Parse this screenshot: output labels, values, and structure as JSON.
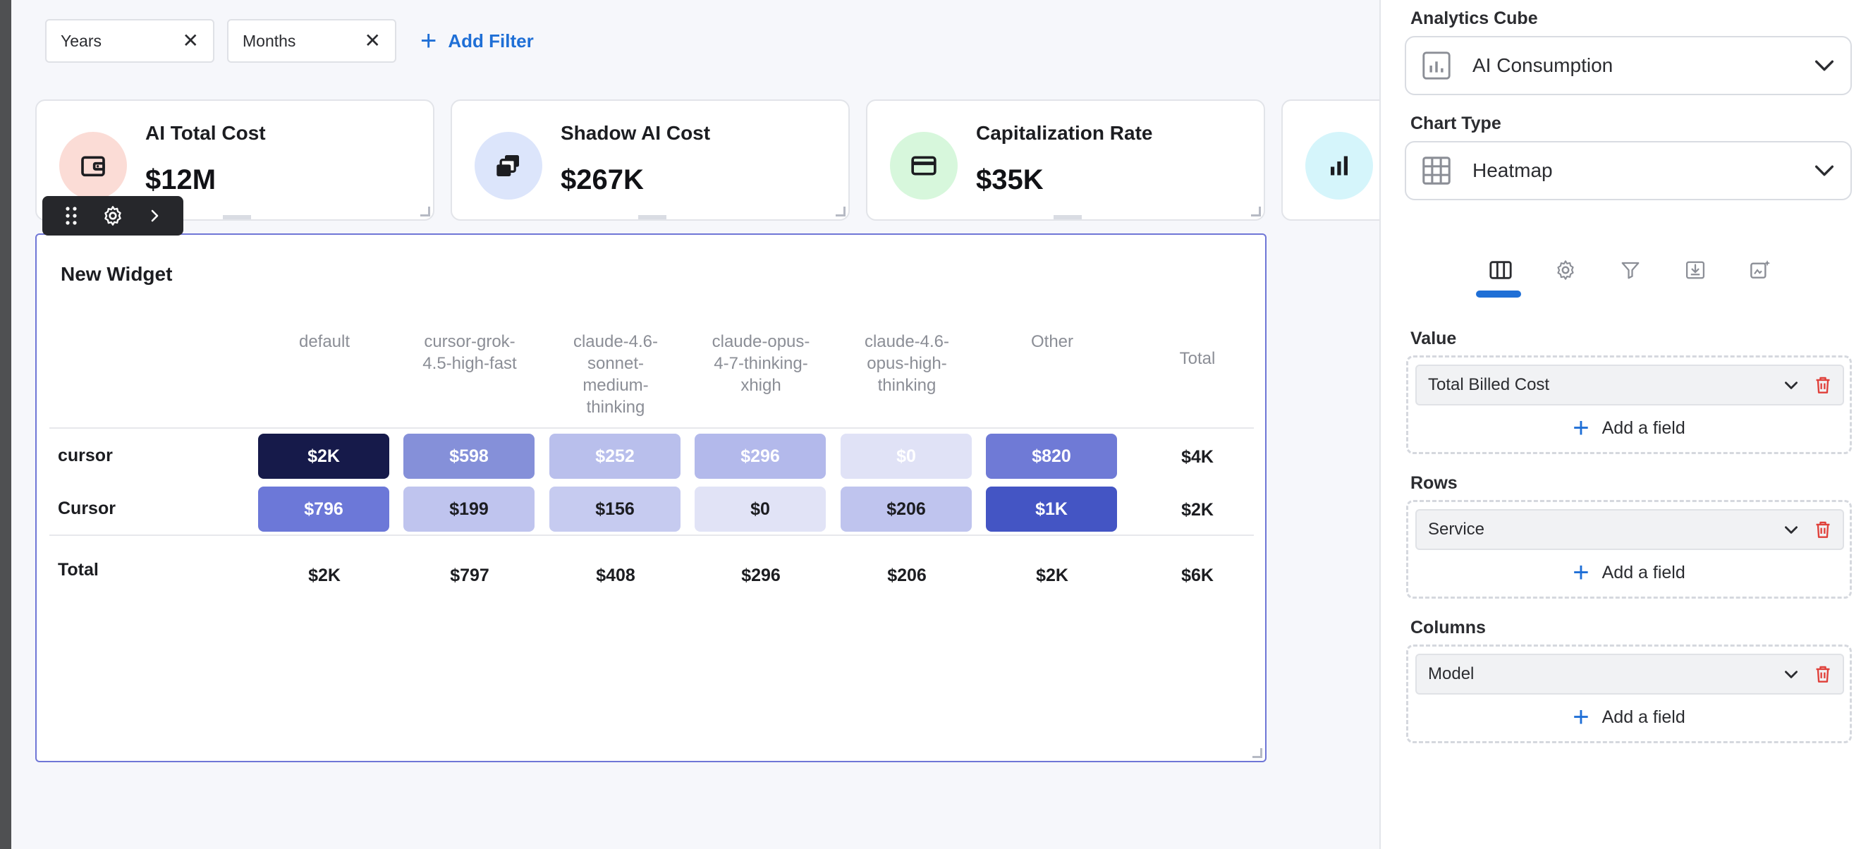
{
  "filters": {
    "chips": [
      {
        "label": "Years"
      },
      {
        "label": "Months"
      }
    ],
    "add_label": "Add Filter"
  },
  "kpis": [
    {
      "title": "AI Total Cost",
      "value": "$12M",
      "icon": "wallet-icon",
      "color": "#fbdcd6"
    },
    {
      "title": "Shadow AI Cost",
      "value": "$267K",
      "icon": "stacked-cards-icon",
      "color": "#dce5fb"
    },
    {
      "title": "Capitalization Rate",
      "value": "$35K",
      "icon": "credit-card-icon",
      "color": "#d7f7dc"
    },
    {
      "title": "",
      "value": "",
      "icon": "bar-chart-icon",
      "color": "#d5f5fb"
    }
  ],
  "widget": {
    "title": "New Widget",
    "columns": [
      [
        "default"
      ],
      [
        "cursor-grok-",
        "4.5-high-fast"
      ],
      [
        "claude-4.6-",
        "sonnet-",
        "medium-",
        "thinking"
      ],
      [
        "claude-opus-",
        "4-7-thinking-",
        "xhigh"
      ],
      [
        "claude-4.6-",
        "opus-high-",
        "thinking"
      ],
      [
        "Other"
      ]
    ],
    "total_header": "Total",
    "rows": [
      {
        "label": "cursor",
        "cells": [
          {
            "v": "$2K",
            "bg": "#161a4a",
            "fg": "#ffffff"
          },
          {
            "v": "$598",
            "bg": "#8590d9",
            "fg": "#ffffff"
          },
          {
            "v": "$252",
            "bg": "#b9bfec",
            "fg": "#ffffff"
          },
          {
            "v": "$296",
            "bg": "#b3b9eb",
            "fg": "#ffffff"
          },
          {
            "v": "$0",
            "bg": "#e0e2f6",
            "fg": "#ffffff"
          },
          {
            "v": "$820",
            "bg": "#6f7ad6",
            "fg": "#ffffff"
          }
        ],
        "total": "$4K"
      },
      {
        "label": "Cursor",
        "cells": [
          {
            "v": "$796",
            "bg": "#6c78d8",
            "fg": "#ffffff"
          },
          {
            "v": "$199",
            "bg": "#bfc4ee",
            "fg": "#1c1d21"
          },
          {
            "v": "$156",
            "bg": "#c6cbf0",
            "fg": "#1c1d21"
          },
          {
            "v": "$0",
            "bg": "#e1e3f6",
            "fg": "#1c1d21"
          },
          {
            "v": "$206",
            "bg": "#bfc4ee",
            "fg": "#1c1d21"
          },
          {
            "v": "$1K",
            "bg": "#4455c4",
            "fg": "#ffffff"
          }
        ],
        "total": "$2K"
      }
    ],
    "total_row": {
      "label": "Total",
      "values": [
        "$2K",
        "$797",
        "$408",
        "$296",
        "$206",
        "$2K"
      ],
      "grand": "$6K"
    }
  },
  "panel": {
    "cube_label": "Analytics Cube",
    "cube_value": "AI Consumption",
    "chart_type_label": "Chart Type",
    "chart_type_value": "Heatmap",
    "tabs": [
      "columns-icon",
      "gear-icon",
      "filter-icon",
      "download-icon",
      "ai-sparkle-icon"
    ],
    "sections": [
      {
        "label": "Value",
        "field": "Total Billed Cost",
        "add": "Add a field"
      },
      {
        "label": "Rows",
        "field": "Service",
        "add": "Add a field"
      },
      {
        "label": "Columns",
        "field": "Model",
        "add": "Add a field"
      }
    ]
  }
}
